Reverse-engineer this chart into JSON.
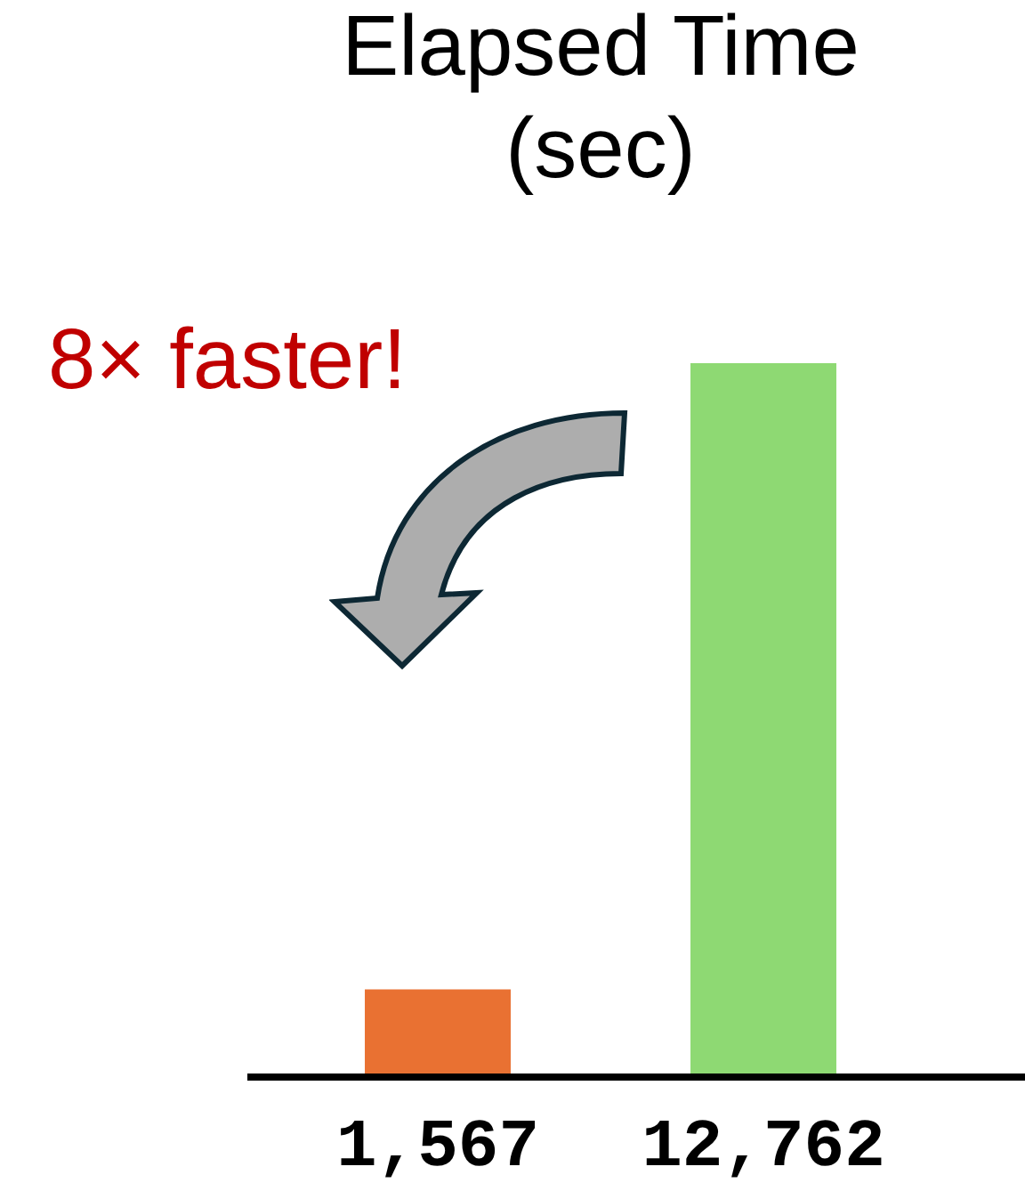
{
  "chart_data": {
    "type": "bar",
    "title": "Elapsed Time\n(sec)",
    "categories": [
      null,
      null
    ],
    "values": [
      1567,
      12762
    ],
    "value_labels": [
      "1,567",
      "12,762"
    ],
    "colors": [
      "#e97132",
      "#8ed973"
    ],
    "tick_labels": false,
    "annotations": [
      "8× faster!"
    ]
  }
}
